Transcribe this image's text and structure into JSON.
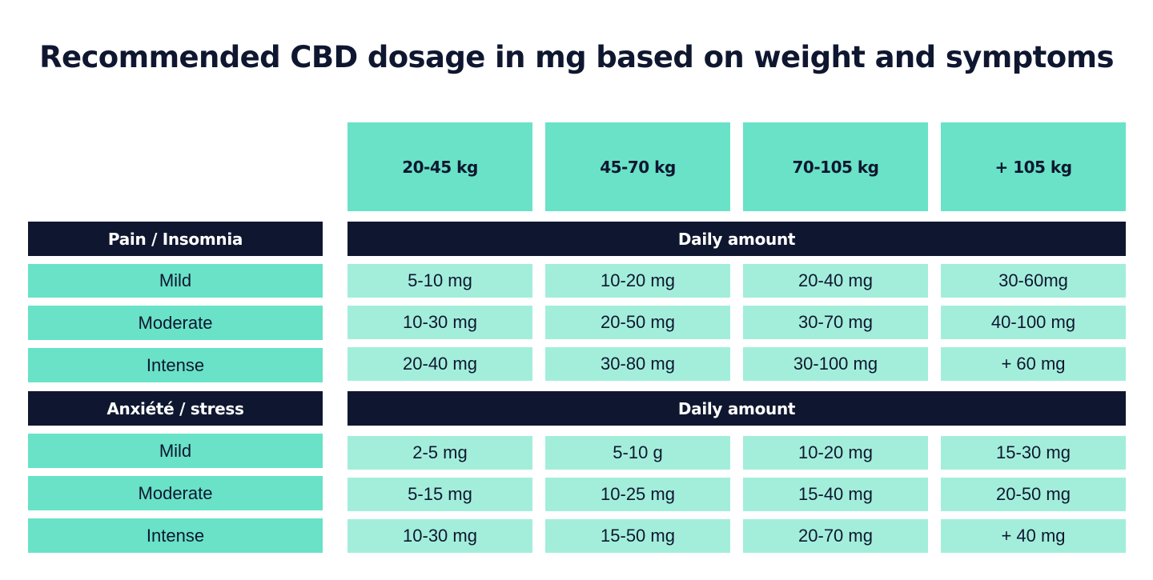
{
  "title": "Recommended CBD dosage in mg based on weight and symptoms",
  "columns": [
    "20-45 kg",
    "45-70 kg",
    "70-105 kg",
    "+ 105 kg"
  ],
  "sections": [
    {
      "category": "Pain / Insomnia",
      "header": "Daily amount",
      "rows": [
        {
          "label": "Mild",
          "values": [
            "5-10 mg",
            "10-20 mg",
            "20-40 mg",
            "30-60mg"
          ]
        },
        {
          "label": "Moderate",
          "values": [
            "10-30 mg",
            "20-50 mg",
            "30-70 mg",
            "40-100 mg"
          ]
        },
        {
          "label": "Intense",
          "values": [
            "20-40 mg",
            "30-80 mg",
            "30-100 mg",
            "+ 60 mg"
          ]
        }
      ]
    },
    {
      "category": "Anxiété / stress",
      "header": "Daily amount",
      "rows": [
        {
          "label": "Mild",
          "values": [
            "2-5 mg",
            "5-10 g",
            "10-20 mg",
            "15-30 mg"
          ]
        },
        {
          "label": "Moderate",
          "values": [
            "5-15 mg",
            "10-25 mg",
            "15-40 mg",
            "20-50 mg"
          ]
        },
        {
          "label": "Intense",
          "values": [
            "10-30 mg",
            "15-50 mg",
            "20-70 mg",
            "+ 40 mg"
          ]
        }
      ]
    }
  ],
  "colors": {
    "navy": "#0f1730",
    "teal": "#69e2c7",
    "light_teal": "#a3eedb",
    "white": "#ffffff"
  }
}
